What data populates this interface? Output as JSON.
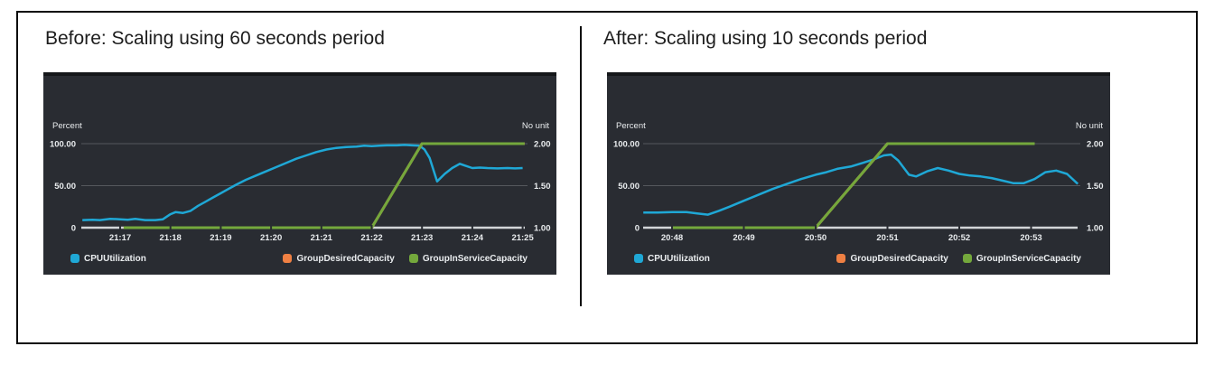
{
  "sections": {
    "before_title": "Before: Scaling using 60 seconds period",
    "after_title": "After: Scaling using 10 seconds period"
  },
  "colors": {
    "panel_bg": "#292c32",
    "panel_top_strip": "#15171a",
    "grid": "#55585d",
    "baseline": "#d2d5d8",
    "axis_text": "#e9ecee",
    "title_text": "#1d1d1d",
    "cyan": "#1fa8d6",
    "orange": "#ef8043",
    "green": "#74a83c"
  },
  "chart_data": [
    {
      "type": "line",
      "title": "Before: Scaling using 60 seconds period",
      "left_axis": {
        "label": "Percent",
        "ticks": [
          "100.00",
          "50.00",
          "0"
        ],
        "range": [
          0,
          100
        ]
      },
      "right_axis": {
        "label": "No unit",
        "ticks": [
          "2.00",
          "1.50",
          "1.00"
        ],
        "range": [
          1,
          2
        ]
      },
      "x_ticks": [
        {
          "label": "21:17",
          "t": 17
        },
        {
          "label": "21:18",
          "t": 18
        },
        {
          "label": "21:19",
          "t": 19
        },
        {
          "label": "21:20",
          "t": 20
        },
        {
          "label": "21:21",
          "t": 21
        },
        {
          "label": "21:22",
          "t": 22
        },
        {
          "label": "21:23",
          "t": 23
        },
        {
          "label": "21:24",
          "t": 24
        },
        {
          "label": "21:25",
          "t": 25
        }
      ],
      "series": [
        {
          "name": "CPUUtilization",
          "color": "#1fa8d6",
          "axis": "left",
          "width": 2.5,
          "points": [
            [
              16.25,
              9
            ],
            [
              16.45,
              9.5
            ],
            [
              16.6,
              9
            ],
            [
              16.8,
              10.5
            ],
            [
              17.0,
              10
            ],
            [
              17.15,
              9.5
            ],
            [
              17.3,
              10.5
            ],
            [
              17.5,
              9
            ],
            [
              17.7,
              9
            ],
            [
              17.85,
              10
            ],
            [
              18.0,
              16
            ],
            [
              18.1,
              18.5
            ],
            [
              18.25,
              17.5
            ],
            [
              18.4,
              20
            ],
            [
              18.55,
              26
            ],
            [
              18.7,
              31
            ],
            [
              18.85,
              36
            ],
            [
              19.0,
              41
            ],
            [
              19.15,
              46
            ],
            [
              19.3,
              51
            ],
            [
              19.5,
              57
            ],
            [
              19.7,
              62
            ],
            [
              19.9,
              67
            ],
            [
              20.1,
              72
            ],
            [
              20.3,
              77
            ],
            [
              20.5,
              82
            ],
            [
              20.7,
              86
            ],
            [
              20.9,
              90
            ],
            [
              21.1,
              93
            ],
            [
              21.3,
              95
            ],
            [
              21.5,
              96
            ],
            [
              21.7,
              96.5
            ],
            [
              21.85,
              97.5
            ],
            [
              22.0,
              97
            ],
            [
              22.15,
              97.5
            ],
            [
              22.3,
              98
            ],
            [
              22.5,
              98
            ],
            [
              22.65,
              98.5
            ],
            [
              22.8,
              98
            ],
            [
              22.95,
              97.5
            ],
            [
              23.05,
              93
            ],
            [
              23.15,
              83
            ],
            [
              23.3,
              55
            ],
            [
              23.45,
              64
            ],
            [
              23.6,
              71
            ],
            [
              23.75,
              76
            ],
            [
              23.85,
              74
            ],
            [
              24.0,
              71
            ],
            [
              24.15,
              71.5
            ],
            [
              24.3,
              71
            ],
            [
              24.5,
              70.5
            ],
            [
              24.7,
              71
            ],
            [
              24.85,
              70.5
            ],
            [
              25.0,
              71
            ]
          ]
        },
        {
          "name": "GroupDesiredCapacity",
          "color": "#ef8043",
          "axis": "right",
          "width": 3,
          "points": [
            [
              17.07,
              1
            ],
            [
              22.0,
              1
            ],
            [
              23.0,
              2
            ],
            [
              25.04,
              2
            ]
          ]
        },
        {
          "name": "GroupInServiceCapacity",
          "color": "#74a83c",
          "axis": "right",
          "width": 3,
          "points": [
            [
              17.07,
              1
            ],
            [
              22.0,
              1
            ],
            [
              23.0,
              2
            ],
            [
              25.04,
              2
            ]
          ]
        }
      ]
    },
    {
      "type": "line",
      "title": "After: Scaling using 10 seconds period",
      "left_axis": {
        "label": "Percent",
        "ticks": [
          "100.00",
          "50.00",
          "0"
        ],
        "range": [
          0,
          100
        ]
      },
      "right_axis": {
        "label": "No unit",
        "ticks": [
          "2.00",
          "1.50",
          "1.00"
        ],
        "range": [
          1,
          2
        ]
      },
      "x_ticks": [
        {
          "label": "20:48",
          "t": 48
        },
        {
          "label": "20:49",
          "t": 49
        },
        {
          "label": "20:50",
          "t": 50
        },
        {
          "label": "20:51",
          "t": 51
        },
        {
          "label": "20:52",
          "t": 52
        },
        {
          "label": "20:53",
          "t": 53
        }
      ],
      "series": [
        {
          "name": "CPUUtilization",
          "color": "#1fa8d6",
          "axis": "left",
          "width": 2.5,
          "points": [
            [
              47.6,
              18
            ],
            [
              47.8,
              18
            ],
            [
              48.0,
              18.5
            ],
            [
              48.2,
              18.5
            ],
            [
              48.35,
              17
            ],
            [
              48.5,
              15.5
            ],
            [
              48.65,
              20
            ],
            [
              48.8,
              25
            ],
            [
              49.0,
              32
            ],
            [
              49.2,
              39
            ],
            [
              49.4,
              46
            ],
            [
              49.6,
              52
            ],
            [
              49.8,
              58
            ],
            [
              50.0,
              63
            ],
            [
              50.15,
              66
            ],
            [
              50.3,
              70
            ],
            [
              50.5,
              73
            ],
            [
              50.65,
              77
            ],
            [
              50.8,
              81
            ],
            [
              50.95,
              86
            ],
            [
              51.05,
              87
            ],
            [
              51.15,
              80
            ],
            [
              51.3,
              63
            ],
            [
              51.4,
              61
            ],
            [
              51.55,
              67
            ],
            [
              51.7,
              71
            ],
            [
              51.85,
              68
            ],
            [
              52.0,
              64
            ],
            [
              52.15,
              62
            ],
            [
              52.3,
              61
            ],
            [
              52.45,
              59
            ],
            [
              52.6,
              56
            ],
            [
              52.75,
              53
            ],
            [
              52.9,
              53
            ],
            [
              53.05,
              58
            ],
            [
              53.2,
              66
            ],
            [
              53.35,
              68
            ],
            [
              53.5,
              64
            ],
            [
              53.65,
              52
            ]
          ]
        },
        {
          "name": "GroupDesiredCapacity",
          "color": "#ef8043",
          "axis": "right",
          "width": 3,
          "points": [
            [
              48.0,
              1
            ],
            [
              50.0,
              1
            ],
            [
              51.0,
              2
            ],
            [
              53.05,
              2
            ]
          ]
        },
        {
          "name": "GroupInServiceCapacity",
          "color": "#74a83c",
          "axis": "right",
          "width": 3,
          "points": [
            [
              48.0,
              1
            ],
            [
              50.0,
              1
            ],
            [
              51.0,
              2
            ],
            [
              53.05,
              2
            ]
          ]
        }
      ]
    }
  ]
}
